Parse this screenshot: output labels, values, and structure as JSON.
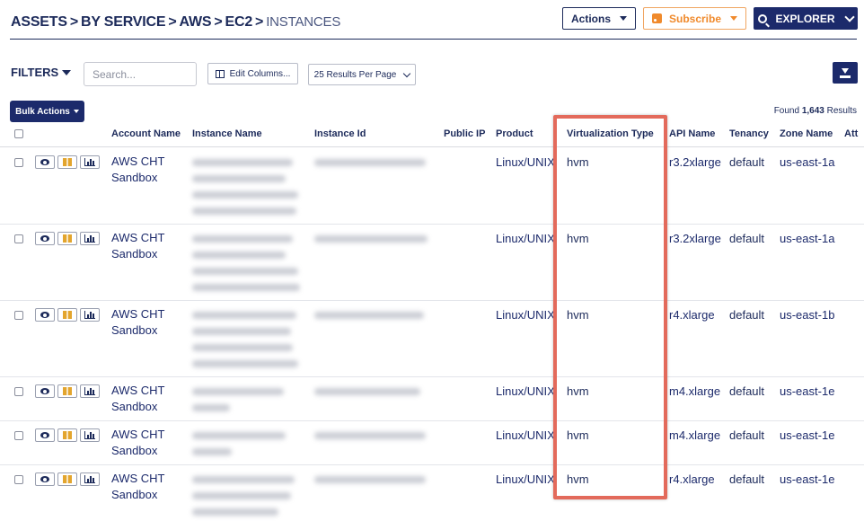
{
  "header": {
    "breadcrumb": [
      "ASSETS",
      "BY SERVICE",
      "AWS",
      "EC2"
    ],
    "current": "INSTANCES",
    "actions_label": "Actions",
    "subscribe_label": "Subscribe",
    "explorer_label": "EXPLORER"
  },
  "toolbar": {
    "filters_label": "FILTERS",
    "search_placeholder": "Search...",
    "edit_columns_label": "Edit Columns...",
    "per_page_label": "25 Results Per Page",
    "bulk_actions_label": "Bulk Actions",
    "found_prefix": "Found",
    "found_count": "1,643",
    "found_suffix": "Results"
  },
  "table": {
    "columns": [
      "Account Name",
      "Instance Name",
      "Instance Id",
      "Public IP",
      "Product",
      "Virtualization Type",
      "API Name",
      "Tenancy",
      "Zone Name",
      "Att"
    ],
    "rows": [
      {
        "account_line1": "AWS CHT",
        "account_line2": "Sandbox",
        "product": "Linux/UNIX",
        "virtualization": "hvm",
        "api": "r3.2xlarge",
        "tenancy": "default",
        "zone": "us-east-1a"
      },
      {
        "account_line1": "AWS CHT",
        "account_line2": "Sandbox",
        "product": "Linux/UNIX",
        "virtualization": "hvm",
        "api": "r3.2xlarge",
        "tenancy": "default",
        "zone": "us-east-1a"
      },
      {
        "account_line1": "AWS CHT",
        "account_line2": "Sandbox",
        "product": "Linux/UNIX",
        "virtualization": "hvm",
        "api": "r4.xlarge",
        "tenancy": "default",
        "zone": "us-east-1b"
      },
      {
        "account_line1": "AWS CHT",
        "account_line2": "Sandbox",
        "product": "Linux/UNIX",
        "virtualization": "hvm",
        "api": "m4.xlarge",
        "tenancy": "default",
        "zone": "us-east-1e"
      },
      {
        "account_line1": "AWS CHT",
        "account_line2": "Sandbox",
        "product": "Linux/UNIX",
        "virtualization": "hvm",
        "api": "m4.xlarge",
        "tenancy": "default",
        "zone": "us-east-1e"
      },
      {
        "account_line1": "AWS CHT",
        "account_line2": "Sandbox",
        "product": "Linux/UNIX",
        "virtualization": "hvm",
        "api": "r4.xlarge",
        "tenancy": "default",
        "zone": "us-east-1e"
      }
    ]
  },
  "icons": {
    "view": "eye-icon",
    "resource": "box-icon",
    "metrics": "bar-chart-icon",
    "download": "download-icon"
  },
  "colors": {
    "navy": "#1c2a6b",
    "subscribe_orange": "#f08a2c",
    "highlight": "#e36a5b"
  }
}
